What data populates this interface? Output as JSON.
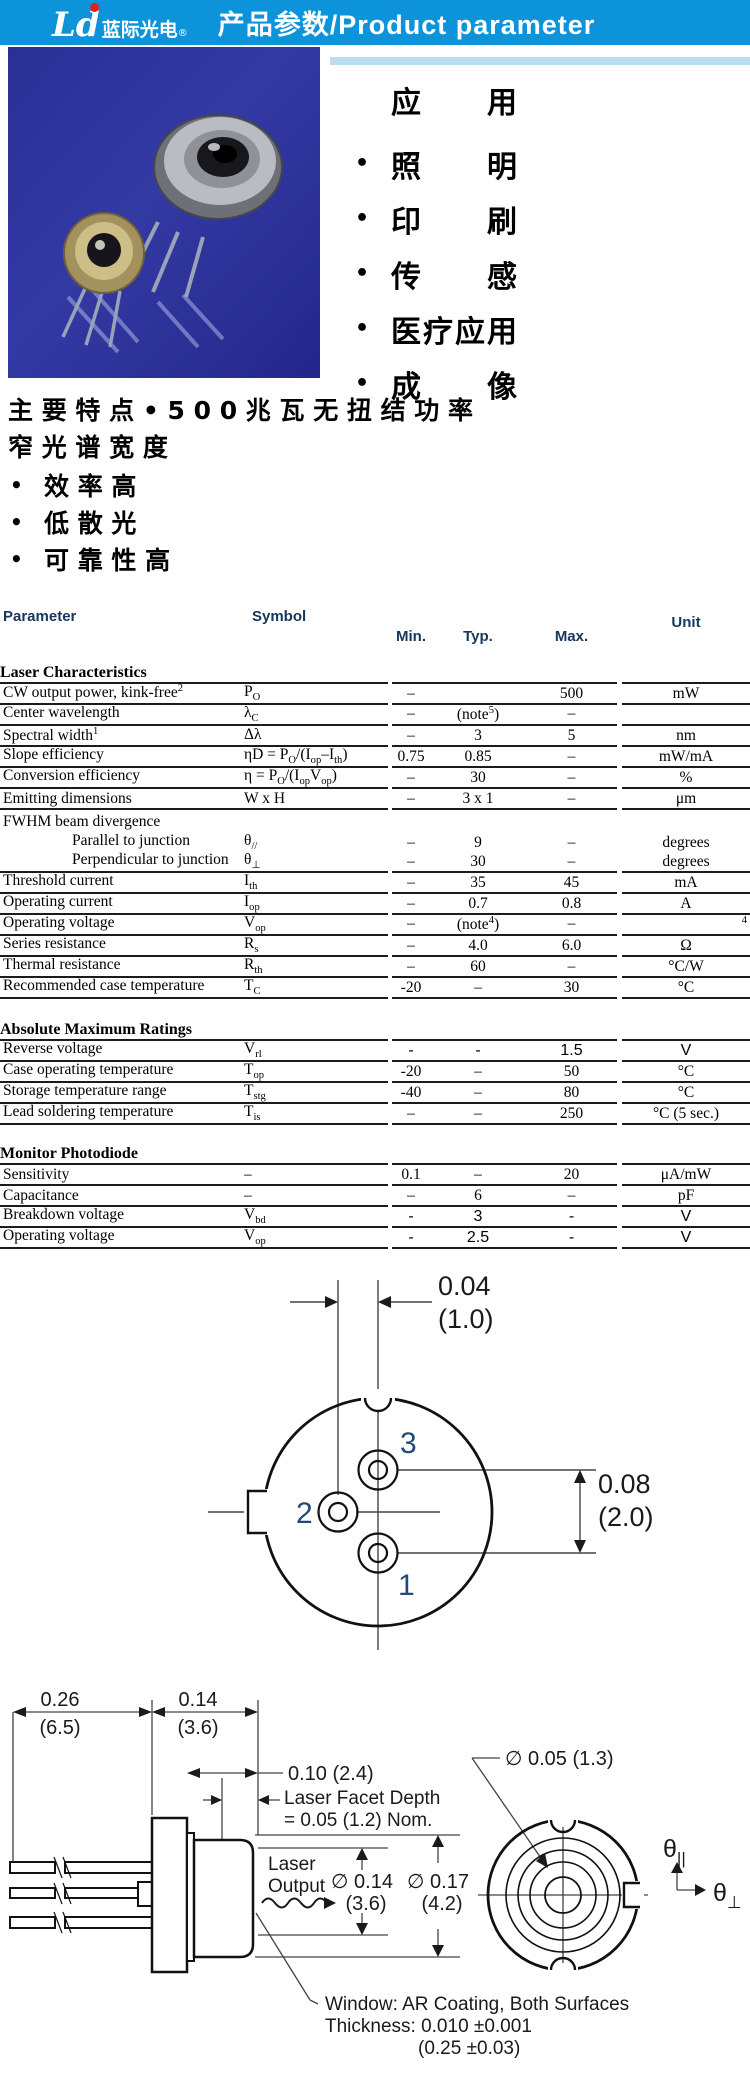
{
  "header": {
    "logo_mark": "Ld",
    "logo_cn": "蓝际光电",
    "reg": "®",
    "title": "产品参数/Product parameter"
  },
  "applications": {
    "title": "应　　用",
    "items": [
      "照　　明",
      "印　　刷",
      "传　　感",
      "医疗应用",
      "成　　像"
    ],
    "bullet": "•"
  },
  "features": {
    "line1": "主 要 特 点 • 5 0 0 兆 瓦 无 扭 结 功 率",
    "line2": "窄 光 谱 宽 度",
    "bullet": "•",
    "items": [
      "效 率 高",
      "低 散 光",
      "可 靠 性 高"
    ]
  },
  "table": {
    "headers": {
      "param": "Parameter",
      "symbol": "Symbol",
      "min": "Min.",
      "typ": "Typ.",
      "max": "Max.",
      "unit": "Unit"
    },
    "sections": [
      {
        "title": "Laser Characteristics",
        "rows": [
          {
            "param": "CW output power, kink-free^{2}",
            "sym": "P_{O}",
            "min": "–",
            "typ": "",
            "max": "500",
            "unit": "mW"
          },
          {
            "param": "Center wavelength",
            "sym": "λ_{C}",
            "min": "–",
            "typ": "(note^{5})",
            "max": "–",
            "unit": ""
          },
          {
            "param": "Spectral width^{1}",
            "sym": "Δλ",
            "min": "–",
            "typ": "3",
            "max": "5",
            "unit": "nm"
          },
          {
            "param": "Slope efficiency",
            "sym": "ηD = P_{O}/(I_{op}–I_{th})",
            "min": "0.75",
            "typ": "0.85",
            "max": "–",
            "unit": "mW/mA"
          },
          {
            "param": "Conversion efficiency",
            "sym": "η = P_{O}/(I_{op}V_{op})",
            "min": "–",
            "typ": "30",
            "max": "–",
            "unit": "%"
          },
          {
            "param": "Emitting dimensions",
            "sym": "W x H",
            "min": "–",
            "typ": "3 x 1",
            "max": "–",
            "unit": "μm"
          },
          {
            "param": "FWHM beam divergence",
            "sym": "",
            "min": "",
            "typ": "",
            "max": "",
            "unit": "",
            "noline": true
          },
          {
            "param": "Parallel to junction",
            "sym": "θ_{//}",
            "min": "–",
            "typ": "9",
            "max": "–",
            "unit": "degrees",
            "indent": true,
            "noline": true
          },
          {
            "param": "Perpendicular to junction",
            "sym": "θ_{⊥}",
            "min": "–",
            "typ": "30",
            "max": "–",
            "unit": "degrees",
            "indent": true
          },
          {
            "param": "Threshold current",
            "sym": "I_{th}",
            "min": "–",
            "typ": "35",
            "max": "45",
            "unit": "mA"
          },
          {
            "param": "Operating current",
            "sym": "I_{op}",
            "min": "–",
            "typ": "0.7",
            "max": "0.8",
            "unit": "A"
          },
          {
            "param": "Operating voltage",
            "sym": "V_{op}",
            "min": "–",
            "typ": "(note^{4})",
            "max": "–",
            "unit": "^{4}",
            "unitEdge": true
          },
          {
            "param": "Series resistance",
            "sym": "R_{s}",
            "min": "–",
            "typ": "4.0",
            "max": "6.0",
            "unit": "Ω"
          },
          {
            "param": "Thermal resistance",
            "sym": "R_{th}",
            "min": "–",
            "typ": "60",
            "max": "–",
            "unit": "°C/W"
          },
          {
            "param": "Recommended case temperature",
            "sym": "T_{C}",
            "min": "-20",
            "typ": "–",
            "max": "30",
            "unit": "°C"
          }
        ]
      },
      {
        "title": "Absolute Maximum Ratings",
        "rows": [
          {
            "param": "Reverse voltage",
            "sym": "V_{rl}",
            "min": "-",
            "typ": "-",
            "max": "1.5",
            "unit": "V",
            "sans": true
          },
          {
            "param": "Case operating temperature",
            "sym": "T_{op}",
            "min": "-20",
            "typ": "–",
            "max": "50",
            "unit": "°C"
          },
          {
            "param": "Storage temperature range",
            "sym": "T_{stg}",
            "min": "-40",
            "typ": "–",
            "max": "80",
            "unit": "°C"
          },
          {
            "param": "Lead soldering temperature",
            "sym": "T_{is}",
            "min": "–",
            "typ": "–",
            "max": "250",
            "unit": "°C (5 sec.)"
          }
        ]
      },
      {
        "title": "Monitor Photodiode",
        "rows": [
          {
            "param": "Sensitivity",
            "sym": "–",
            "min": "0.1",
            "typ": "–",
            "max": "20",
            "unit": "μA/mW"
          },
          {
            "param": "Capacitance",
            "sym": "–",
            "min": "–",
            "typ": "6",
            "max": "–",
            "unit": "pF"
          },
          {
            "param": "Breakdown voltage",
            "sym": "V_{bd}",
            "min": "-",
            "typ": "3",
            "max": "-",
            "unit": "V",
            "sans": true
          },
          {
            "param": "Operating voltage",
            "sym": "V_{op}",
            "min": "-",
            "typ": "2.5",
            "max": "-",
            "unit": "V",
            "sans": true
          }
        ]
      }
    ]
  },
  "drawings": {
    "pinout": {
      "dim_top_val": "0.04",
      "dim_top_mm": "(1.0)",
      "dim_right_val": "0.08",
      "dim_right_mm": "(2.0)",
      "pin1": "1",
      "pin2": "2",
      "pin3": "3"
    },
    "side": {
      "dim_lead_val": "0.26",
      "dim_lead_mm": "(6.5)",
      "dim_body_val": "0.14",
      "dim_body_mm": "(3.6)",
      "dim_cap": "0.10 (2.4)",
      "facet_line1": "Laser Facet Depth",
      "facet_line2": "= 0.05 (1.2) Nom.",
      "laser_line1": "Laser",
      "laser_line2": "Output",
      "dia_window_val": "∅ 0.14",
      "dia_window_mm": "(3.6)",
      "dia_cap_val": "∅ 0.17",
      "dia_cap_mm": "(4.2)"
    },
    "front": {
      "dia_spot": "∅ 0.05 (1.3)",
      "theta": "θ",
      "theta_par_sub": "||",
      "theta_perp_sub": "⊥"
    },
    "window_note": {
      "line1": "Window: AR Coating, Both Surfaces",
      "line2": "Thickness: 0.010 ±0.001",
      "line3": "(0.25 ±0.03)"
    }
  },
  "colors": {
    "header_bg": "#0c93da",
    "strip": "#b9def2",
    "table_header_text": "#17365d",
    "pin_label": "#1f4979",
    "red_dot": "#e02020"
  }
}
